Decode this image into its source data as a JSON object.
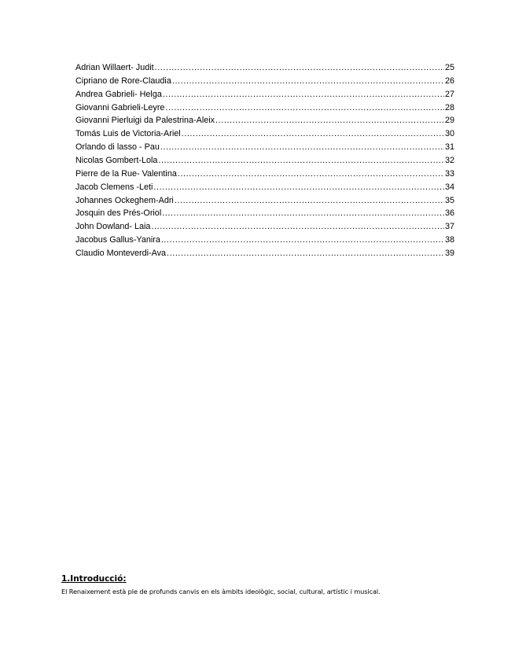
{
  "toc": [
    {
      "label": "Adrian Willaert- Judit",
      "page": "25"
    },
    {
      "label": "Cipriano de Rore-Claudia",
      "page": "26"
    },
    {
      "label": "Andrea Gabrieli- Helga",
      "page": "27"
    },
    {
      "label": "Giovanni Gabrieli-Leyre",
      "page": "28"
    },
    {
      "label": "Giovanni Pierluigi da Palestrina-Aleix",
      "page": "29"
    },
    {
      "label": "Tomás Luis de Victoria-Ariel",
      "page": "30"
    },
    {
      "label": "Orlando di lasso - Pau",
      "page": "31"
    },
    {
      "label": "Nicolas Gombert-Lola",
      "page": "32"
    },
    {
      "label": "Pierre de la Rue- Valentina",
      "page": "33"
    },
    {
      "label": "Jacob Clemens -Leti",
      "page": "34"
    },
    {
      "label": "Johannes Ockeghem-Adri",
      "page": "35"
    },
    {
      "label": "Josquin des Prés-Oriol",
      "page": "36"
    },
    {
      "label": "John Dowland- Laia",
      "page": "37"
    },
    {
      "label": "Jacobus Gallus-Yanira",
      "page": "38"
    },
    {
      "label": "Claudio Monteverdi-Ava",
      "page": "39"
    }
  ],
  "intro": {
    "heading": "1.Introducció:",
    "body": "El Renaixement està ple de profunds canvis en els àmbits ideològic, social, cultural, artístic i musical."
  }
}
